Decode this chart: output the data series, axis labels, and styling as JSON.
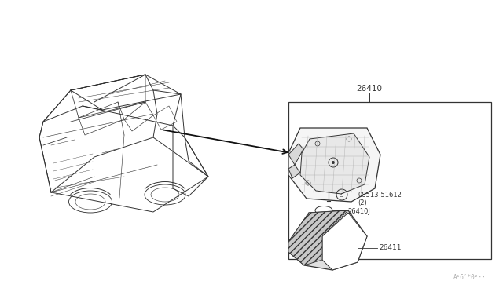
{
  "bg_color": "#ffffff",
  "watermark": "A¹6′*0²··",
  "part_label_26410": "26410",
  "part_label_screw": "08513-51612",
  "part_label_screw_qty": "(2)",
  "part_label_26410J": "26410J",
  "part_label_26411": "26411",
  "line_color": "#333333",
  "text_color": "#333333",
  "fig_width": 6.4,
  "fig_height": 3.72,
  "dpi": 100
}
